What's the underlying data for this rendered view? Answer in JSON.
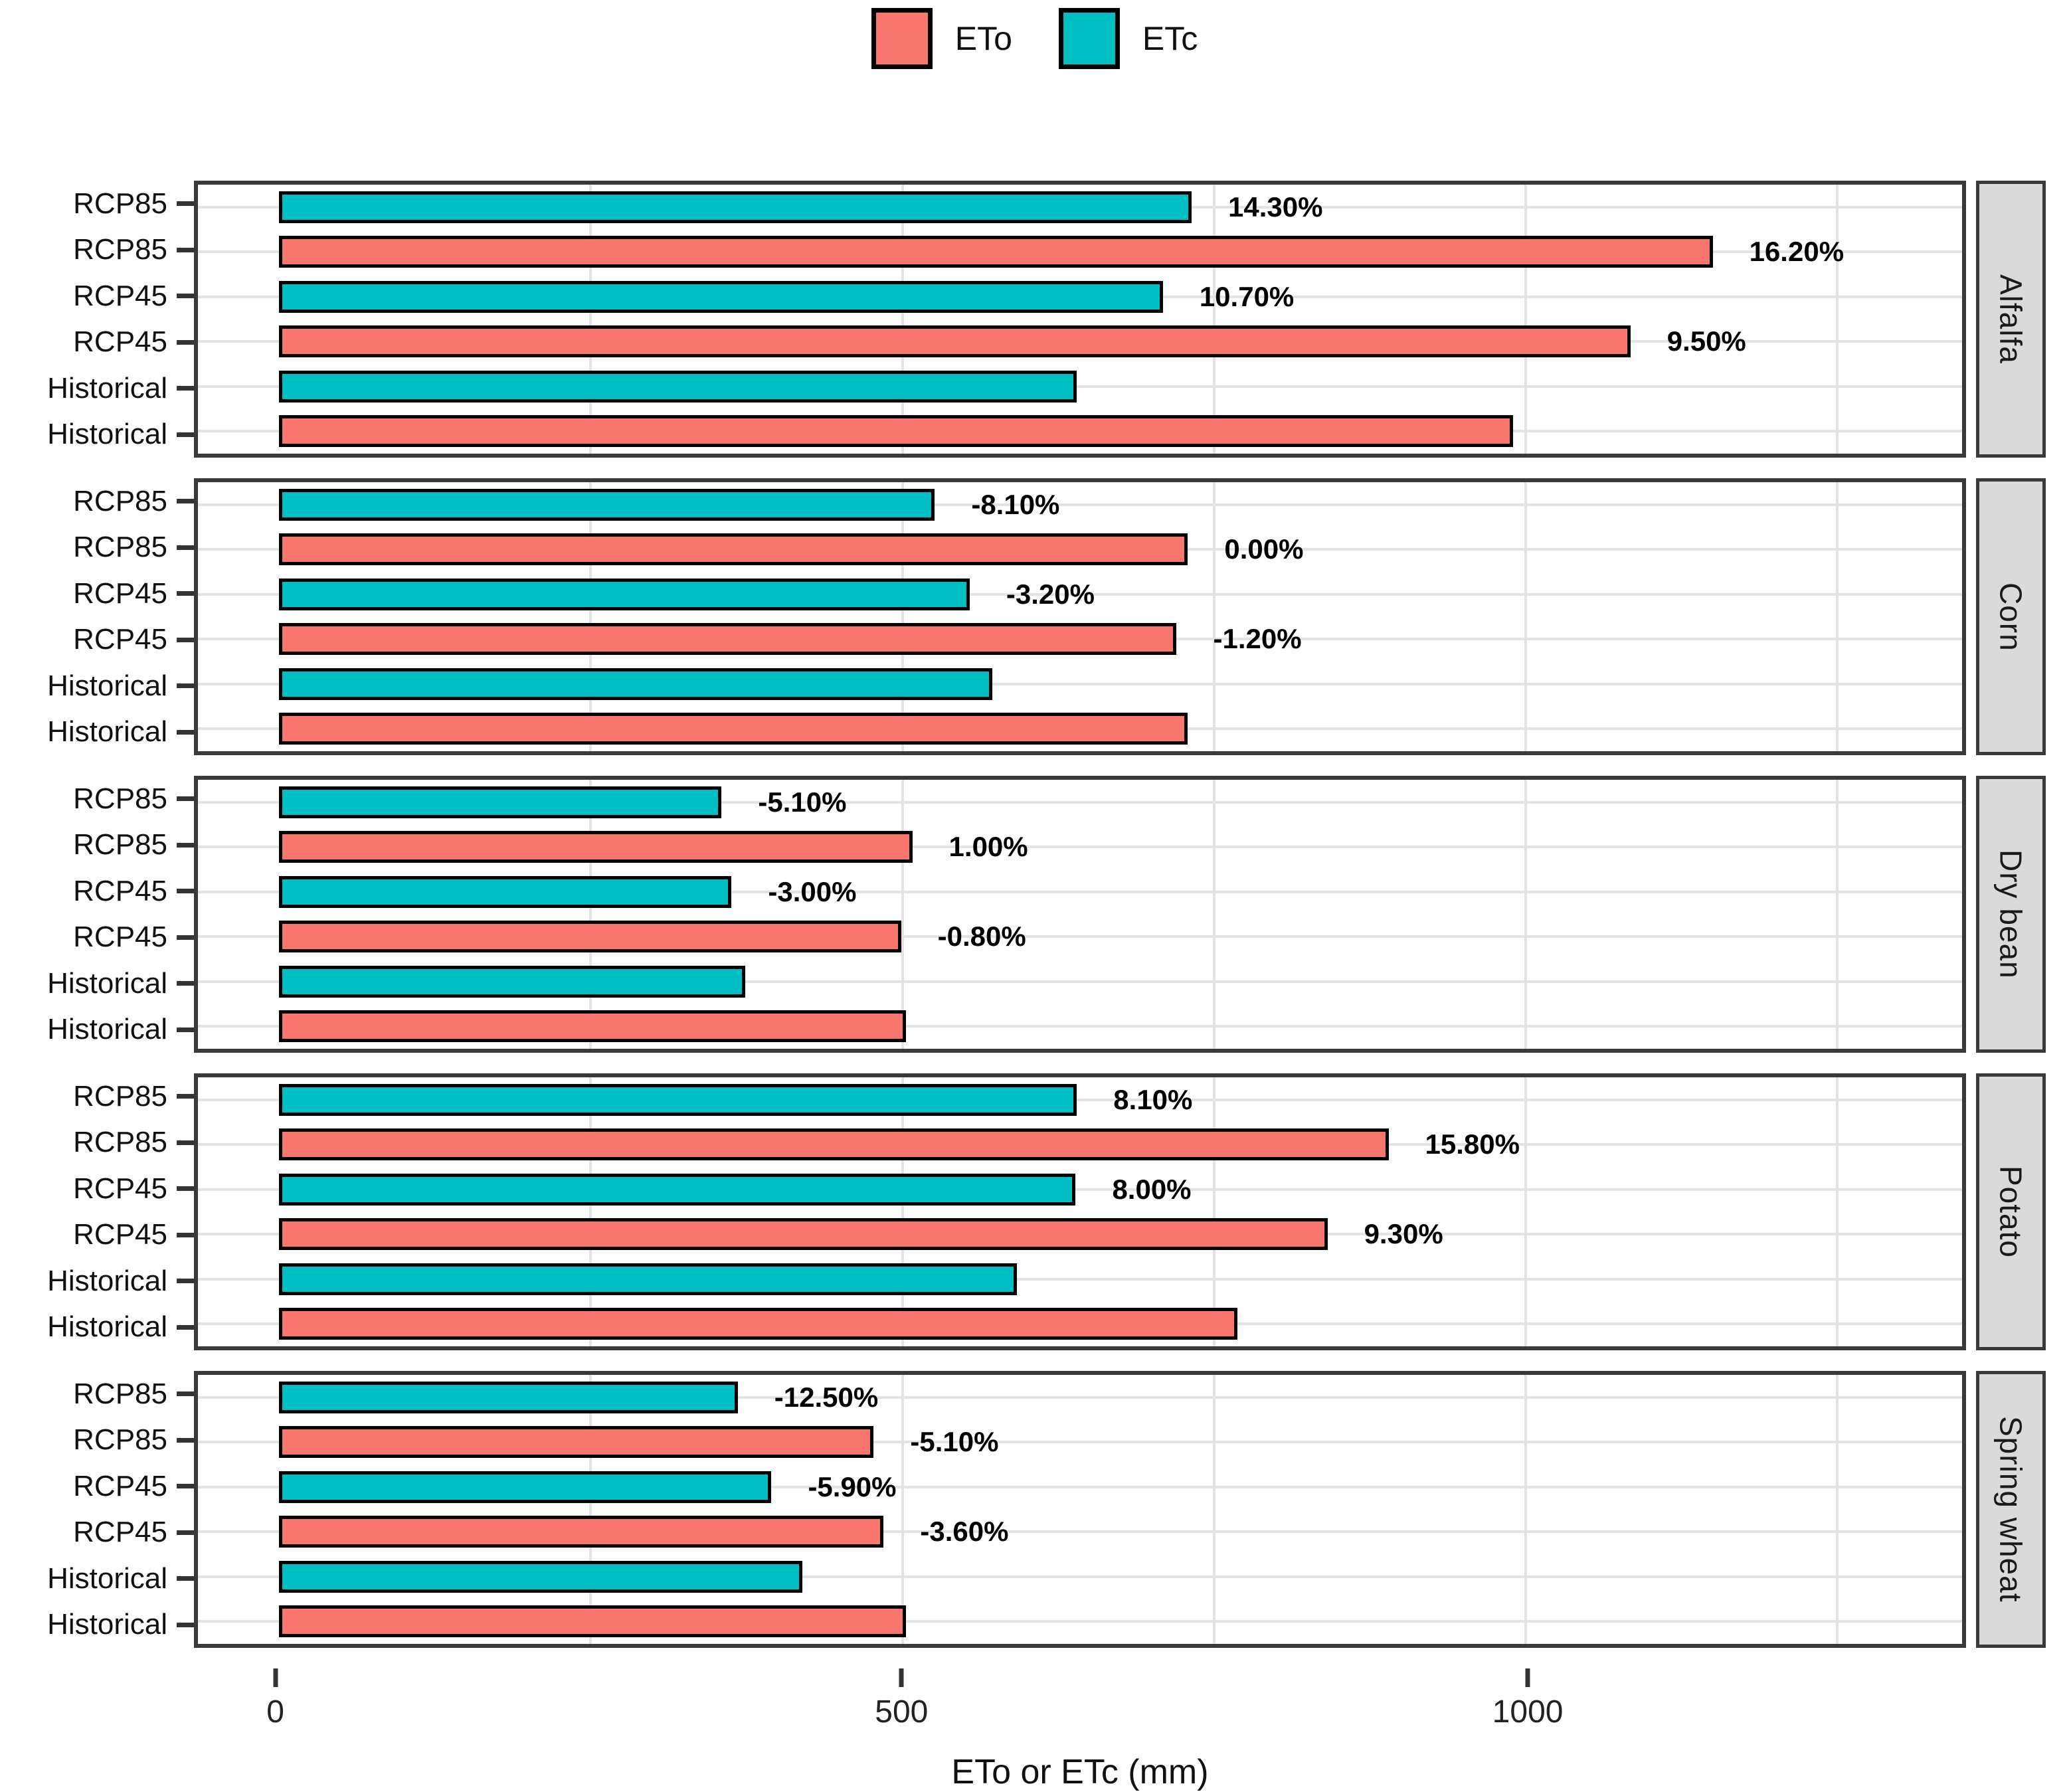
{
  "chart_data": {
    "type": "bar",
    "orientation": "horizontal",
    "xlabel": "ETo or ETc (mm)",
    "legend": [
      {
        "name": "ETo",
        "color": "#F8766D"
      },
      {
        "name": "ETc",
        "color": "#00BFC4"
      }
    ],
    "series_colors": {
      "ETo": "#F8766D",
      "ETc": "#00BFC4"
    },
    "axis": {
      "min": -65,
      "max": 1350,
      "ticks": [
        {
          "v": 0,
          "label": "0"
        },
        {
          "v": 500,
          "label": "500"
        },
        {
          "v": 1000,
          "label": "1000"
        }
      ],
      "gridlines": [
        250,
        500,
        750,
        1000,
        1250
      ]
    },
    "facets": [
      {
        "label": "Alfalfa",
        "rows": [
          {
            "scenario": "RCP85",
            "series": "ETc",
            "value": 732,
            "pct_label": "14.30%"
          },
          {
            "scenario": "RCP85",
            "series": "ETo",
            "value": 1150,
            "pct_label": "16.20%"
          },
          {
            "scenario": "RCP45",
            "series": "ETc",
            "value": 709,
            "pct_label": "10.70%"
          },
          {
            "scenario": "RCP45",
            "series": "ETo",
            "value": 1084,
            "pct_label": "9.50%"
          },
          {
            "scenario": "Historical",
            "series": "ETc",
            "value": 640,
            "pct_label": ""
          },
          {
            "scenario": "Historical",
            "series": "ETo",
            "value": 990,
            "pct_label": ""
          }
        ]
      },
      {
        "label": "Corn",
        "rows": [
          {
            "scenario": "RCP85",
            "series": "ETc",
            "value": 526,
            "pct_label": "-8.10%"
          },
          {
            "scenario": "RCP85",
            "series": "ETo",
            "value": 729,
            "pct_label": "0.00%"
          },
          {
            "scenario": "RCP45",
            "series": "ETc",
            "value": 554,
            "pct_label": "-3.20%"
          },
          {
            "scenario": "RCP45",
            "series": "ETo",
            "value": 720,
            "pct_label": "-1.20%"
          },
          {
            "scenario": "Historical",
            "series": "ETc",
            "value": 572,
            "pct_label": ""
          },
          {
            "scenario": "Historical",
            "series": "ETo",
            "value": 729,
            "pct_label": ""
          }
        ]
      },
      {
        "label": "Dry bean",
        "rows": [
          {
            "scenario": "RCP85",
            "series": "ETc",
            "value": 355,
            "pct_label": "-5.10%"
          },
          {
            "scenario": "RCP85",
            "series": "ETo",
            "value": 508,
            "pct_label": "1.00%"
          },
          {
            "scenario": "RCP45",
            "series": "ETc",
            "value": 363,
            "pct_label": "-3.00%"
          },
          {
            "scenario": "RCP45",
            "series": "ETo",
            "value": 499,
            "pct_label": "-0.80%"
          },
          {
            "scenario": "Historical",
            "series": "ETc",
            "value": 374,
            "pct_label": ""
          },
          {
            "scenario": "Historical",
            "series": "ETo",
            "value": 503,
            "pct_label": ""
          }
        ]
      },
      {
        "label": "Potato",
        "rows": [
          {
            "scenario": "RCP85",
            "series": "ETc",
            "value": 640,
            "pct_label": "8.10%"
          },
          {
            "scenario": "RCP85",
            "series": "ETo",
            "value": 890,
            "pct_label": "15.80%"
          },
          {
            "scenario": "RCP45",
            "series": "ETc",
            "value": 639,
            "pct_label": "8.00%"
          },
          {
            "scenario": "RCP45",
            "series": "ETo",
            "value": 841,
            "pct_label": "9.30%"
          },
          {
            "scenario": "Historical",
            "series": "ETc",
            "value": 592,
            "pct_label": ""
          },
          {
            "scenario": "Historical",
            "series": "ETo",
            "value": 769,
            "pct_label": ""
          }
        ]
      },
      {
        "label": "Spring wheat",
        "rows": [
          {
            "scenario": "RCP85",
            "series": "ETc",
            "value": 368,
            "pct_label": "-12.50%"
          },
          {
            "scenario": "RCP85",
            "series": "ETo",
            "value": 477,
            "pct_label": "-5.10%"
          },
          {
            "scenario": "RCP45",
            "series": "ETc",
            "value": 395,
            "pct_label": "-5.90%"
          },
          {
            "scenario": "RCP45",
            "series": "ETo",
            "value": 485,
            "pct_label": "-3.60%"
          },
          {
            "scenario": "Historical",
            "series": "ETc",
            "value": 420,
            "pct_label": ""
          },
          {
            "scenario": "Historical",
            "series": "ETo",
            "value": 503,
            "pct_label": ""
          }
        ]
      }
    ]
  }
}
